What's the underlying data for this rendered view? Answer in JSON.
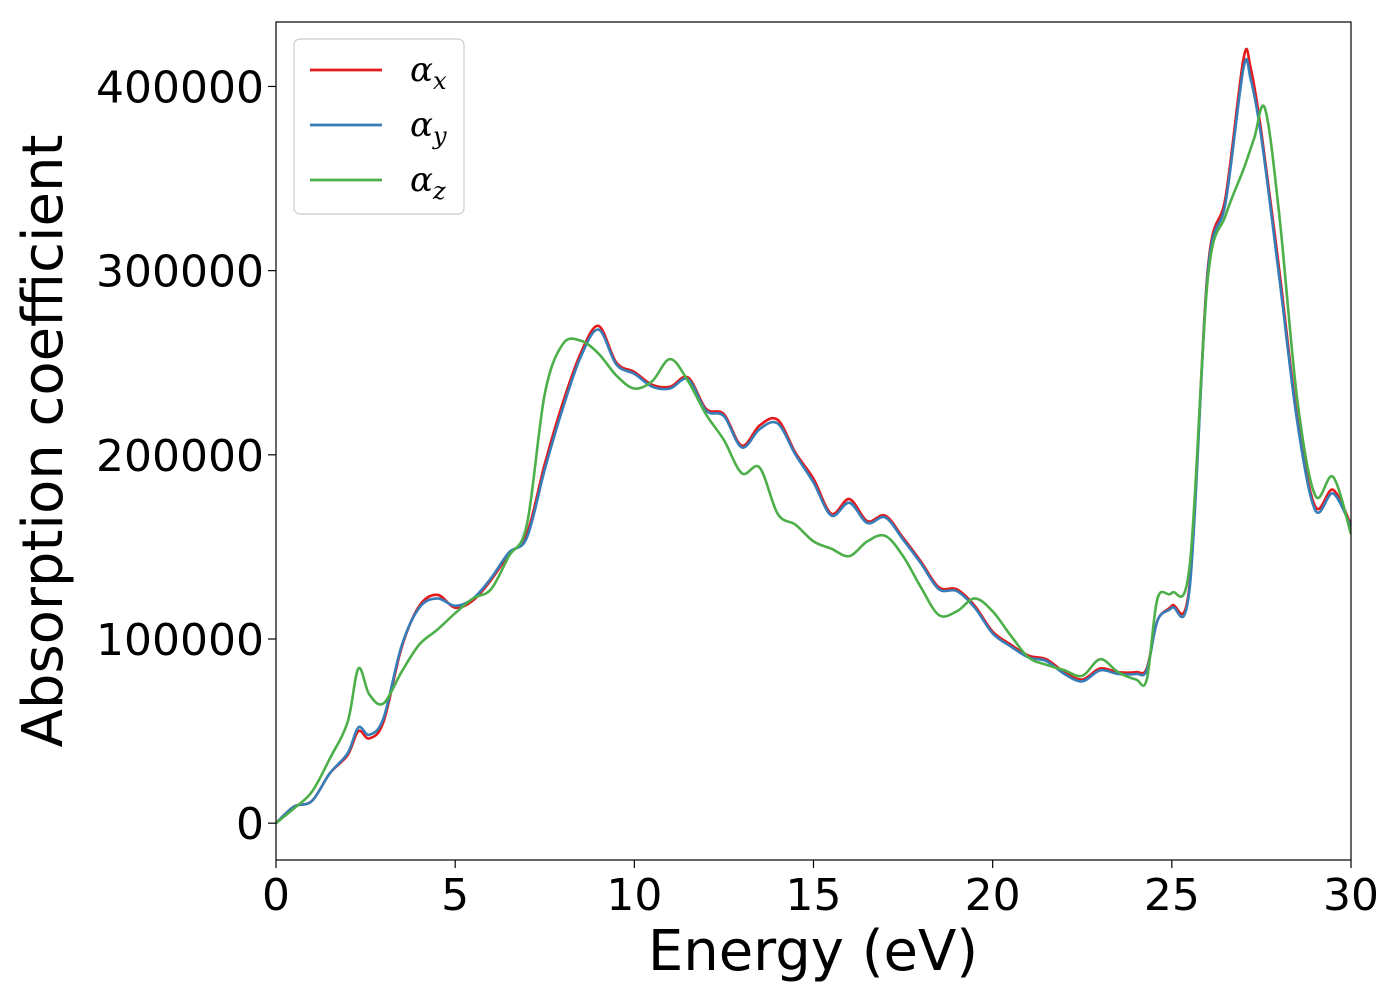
{
  "chart_data": {
    "type": "line",
    "xlabel": "Energy (eV)",
    "ylabel": "Absorption coefficient",
    "xlim": [
      0,
      30
    ],
    "ylim": [
      -20000,
      435000
    ],
    "x_ticks": [
      0,
      5,
      10,
      15,
      20,
      25,
      30
    ],
    "y_ticks": [
      0,
      100000,
      200000,
      300000,
      400000
    ],
    "grid": false,
    "legend_position": "top-left",
    "series": [
      {
        "name": "αx",
        "symbol": "α",
        "subscript": "x",
        "color": "#e41a1c",
        "points": [
          [
            0,
            0
          ],
          [
            0.5,
            9000
          ],
          [
            1,
            12000
          ],
          [
            1.5,
            27000
          ],
          [
            2,
            37000
          ],
          [
            2.3,
            50000
          ],
          [
            2.6,
            46000
          ],
          [
            3,
            55000
          ],
          [
            3.5,
            95000
          ],
          [
            4,
            118000
          ],
          [
            4.5,
            124000
          ],
          [
            5,
            117000
          ],
          [
            5.5,
            121000
          ],
          [
            6,
            132000
          ],
          [
            6.5,
            146000
          ],
          [
            7,
            157000
          ],
          [
            7.5,
            195000
          ],
          [
            8,
            228000
          ],
          [
            8.5,
            255000
          ],
          [
            9,
            270000
          ],
          [
            9.5,
            250000
          ],
          [
            10,
            245000
          ],
          [
            10.5,
            238000
          ],
          [
            11,
            237000
          ],
          [
            11.5,
            242000
          ],
          [
            12,
            225000
          ],
          [
            12.5,
            222000
          ],
          [
            13,
            205000
          ],
          [
            13.5,
            216000
          ],
          [
            14,
            219000
          ],
          [
            14.5,
            201000
          ],
          [
            15,
            187000
          ],
          [
            15.5,
            168000
          ],
          [
            16,
            176000
          ],
          [
            16.5,
            164000
          ],
          [
            17,
            167000
          ],
          [
            17.5,
            155000
          ],
          [
            18,
            142000
          ],
          [
            18.5,
            128000
          ],
          [
            19,
            127000
          ],
          [
            19.5,
            118000
          ],
          [
            20,
            104000
          ],
          [
            20.5,
            97000
          ],
          [
            21,
            91000
          ],
          [
            21.5,
            89000
          ],
          [
            22,
            82000
          ],
          [
            22.5,
            78000
          ],
          [
            23,
            84000
          ],
          [
            23.5,
            82000
          ],
          [
            24,
            82000
          ],
          [
            24.3,
            84000
          ],
          [
            24.6,
            110000
          ],
          [
            25,
            118000
          ],
          [
            25.5,
            130000
          ],
          [
            26,
            300000
          ],
          [
            26.5,
            340000
          ],
          [
            27,
            415000
          ],
          [
            27.2,
            410000
          ],
          [
            27.5,
            375000
          ],
          [
            28,
            300000
          ],
          [
            28.5,
            220000
          ],
          [
            29,
            172000
          ],
          [
            29.5,
            181000
          ],
          [
            30,
            162000
          ]
        ]
      },
      {
        "name": "αy",
        "symbol": "α",
        "subscript": "y",
        "color": "#377eb8",
        "points": [
          [
            0,
            0
          ],
          [
            0.5,
            9000
          ],
          [
            1,
            12000
          ],
          [
            1.5,
            27000
          ],
          [
            2,
            38000
          ],
          [
            2.3,
            52000
          ],
          [
            2.6,
            48000
          ],
          [
            3,
            57000
          ],
          [
            3.5,
            96000
          ],
          [
            4,
            117000
          ],
          [
            4.5,
            122000
          ],
          [
            5,
            118000
          ],
          [
            5.5,
            122000
          ],
          [
            6,
            133000
          ],
          [
            6.5,
            147000
          ],
          [
            7,
            155000
          ],
          [
            7.5,
            192000
          ],
          [
            8,
            225000
          ],
          [
            8.5,
            253000
          ],
          [
            9,
            268000
          ],
          [
            9.5,
            249000
          ],
          [
            10,
            244000
          ],
          [
            10.5,
            237000
          ],
          [
            11,
            236000
          ],
          [
            11.5,
            241000
          ],
          [
            12,
            224000
          ],
          [
            12.5,
            221000
          ],
          [
            13,
            204000
          ],
          [
            13.5,
            214000
          ],
          [
            14,
            217000
          ],
          [
            14.5,
            200000
          ],
          [
            15,
            185000
          ],
          [
            15.5,
            167000
          ],
          [
            16,
            174000
          ],
          [
            16.5,
            163000
          ],
          [
            17,
            166000
          ],
          [
            17.5,
            154000
          ],
          [
            18,
            141000
          ],
          [
            18.5,
            127000
          ],
          [
            19,
            126000
          ],
          [
            19.5,
            117000
          ],
          [
            20,
            103000
          ],
          [
            20.5,
            96000
          ],
          [
            21,
            90000
          ],
          [
            21.5,
            88000
          ],
          [
            22,
            81000
          ],
          [
            22.5,
            77000
          ],
          [
            23,
            83000
          ],
          [
            23.5,
            81000
          ],
          [
            24,
            81000
          ],
          [
            24.3,
            83000
          ],
          [
            24.6,
            110000
          ],
          [
            25,
            117000
          ],
          [
            25.5,
            128000
          ],
          [
            26,
            298000
          ],
          [
            26.5,
            337000
          ],
          [
            27,
            410000
          ],
          [
            27.2,
            404000
          ],
          [
            27.5,
            372000
          ],
          [
            28,
            296000
          ],
          [
            28.5,
            218000
          ],
          [
            29,
            170000
          ],
          [
            29.5,
            179000
          ],
          [
            30,
            161000
          ]
        ]
      },
      {
        "name": "αz",
        "symbol": "α",
        "subscript": "z",
        "color": "#4daf4a",
        "points": [
          [
            0,
            0
          ],
          [
            0.5,
            8000
          ],
          [
            1,
            17000
          ],
          [
            1.5,
            35000
          ],
          [
            2,
            55000
          ],
          [
            2.3,
            84000
          ],
          [
            2.6,
            70000
          ],
          [
            3,
            65000
          ],
          [
            3.5,
            82000
          ],
          [
            4,
            97000
          ],
          [
            4.5,
            105000
          ],
          [
            5,
            114000
          ],
          [
            5.5,
            122000
          ],
          [
            6,
            127000
          ],
          [
            6.5,
            145000
          ],
          [
            7,
            162000
          ],
          [
            7.5,
            233000
          ],
          [
            8,
            260000
          ],
          [
            8.5,
            262000
          ],
          [
            9,
            255000
          ],
          [
            9.5,
            243000
          ],
          [
            10,
            236000
          ],
          [
            10.5,
            240000
          ],
          [
            11,
            252000
          ],
          [
            11.5,
            240000
          ],
          [
            12,
            222000
          ],
          [
            12.5,
            208000
          ],
          [
            13,
            190000
          ],
          [
            13.5,
            193000
          ],
          [
            14,
            168000
          ],
          [
            14.5,
            162000
          ],
          [
            15,
            153000
          ],
          [
            15.5,
            149000
          ],
          [
            16,
            145000
          ],
          [
            16.5,
            153000
          ],
          [
            17,
            156000
          ],
          [
            17.5,
            145000
          ],
          [
            18,
            128000
          ],
          [
            18.5,
            113000
          ],
          [
            19,
            115000
          ],
          [
            19.5,
            122000
          ],
          [
            20,
            115000
          ],
          [
            20.5,
            102000
          ],
          [
            21,
            90000
          ],
          [
            21.5,
            86000
          ],
          [
            22,
            83000
          ],
          [
            22.5,
            80000
          ],
          [
            23,
            89000
          ],
          [
            23.5,
            82000
          ],
          [
            24,
            78000
          ],
          [
            24.3,
            78000
          ],
          [
            24.6,
            122000
          ],
          [
            25,
            125000
          ],
          [
            25.5,
            140000
          ],
          [
            26,
            295000
          ],
          [
            26.5,
            330000
          ],
          [
            27,
            355000
          ],
          [
            27.3,
            372000
          ],
          [
            27.6,
            388000
          ],
          [
            28,
            330000
          ],
          [
            28.5,
            230000
          ],
          [
            29,
            178000
          ],
          [
            29.5,
            188000
          ],
          [
            30,
            157000
          ]
        ]
      }
    ]
  }
}
